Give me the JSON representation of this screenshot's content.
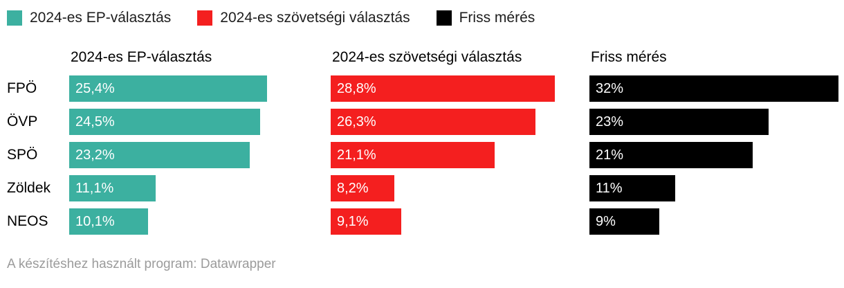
{
  "legend_note": "legend labels mirror series names",
  "chart_data": {
    "type": "bar",
    "title": "",
    "categories": [
      "FPÖ",
      "ÖVP",
      "SPÖ",
      "Zöldek",
      "NEOS"
    ],
    "series": [
      {
        "name": "2024-es EP-választás",
        "color": "#3cb0a0",
        "values": [
          25.4,
          24.5,
          23.2,
          11.1,
          10.1
        ],
        "labels": [
          "25,4%",
          "24,5%",
          "23,2%",
          "11,1%",
          "10,1%"
        ]
      },
      {
        "name": "2024-es szövetségi választás",
        "color": "#f41f1f",
        "values": [
          28.8,
          26.3,
          21.1,
          8.2,
          9.1
        ],
        "labels": [
          "28,8%",
          "26,3%",
          "21,1%",
          "8,2%",
          "9,1%"
        ]
      },
      {
        "name": "Friss mérés",
        "color": "#000000",
        "values": [
          32,
          23,
          21,
          11,
          9
        ],
        "labels": [
          "32%",
          "23%",
          "21%",
          "11%",
          "9%"
        ]
      }
    ],
    "xlabel": "",
    "ylabel": "",
    "xmax": 32,
    "grid": false,
    "legend_position": "top",
    "value_labels_inside_bars": true
  },
  "footer": "A készítéshez használt program: Datawrapper"
}
